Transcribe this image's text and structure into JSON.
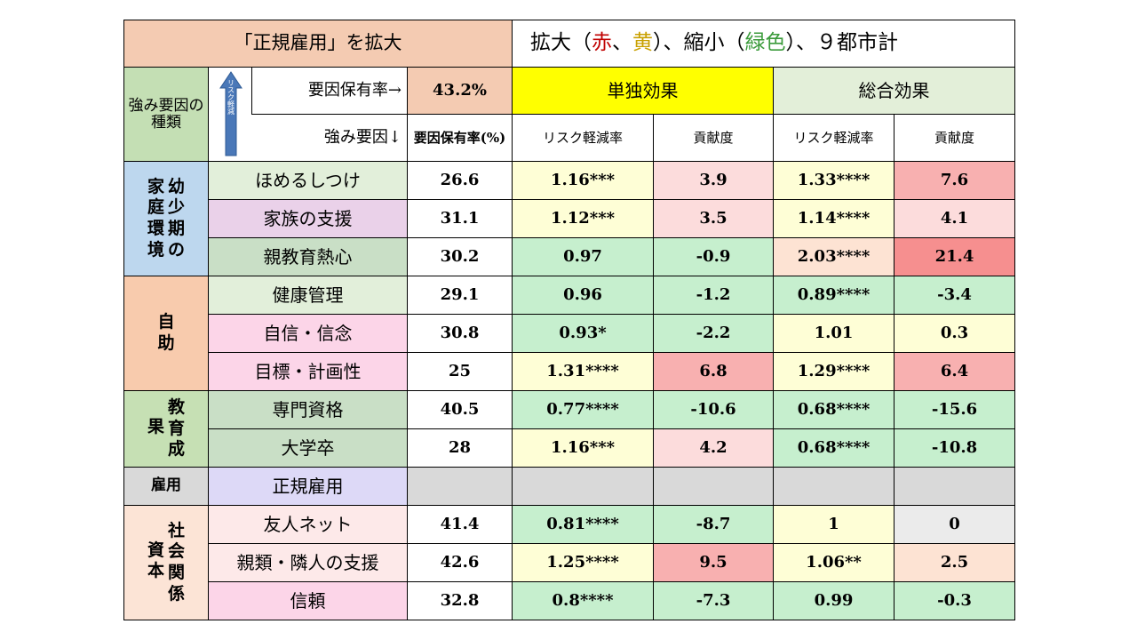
{
  "title_left": "「正規雇用」を拡大",
  "title_right": {
    "p1": "拡大（",
    "red": "赤",
    "sep1": "、",
    "yellow": "黄",
    "p2": "）、縮小（",
    "green": "緑色",
    "p3": "）、９都市計"
  },
  "header": {
    "kind": "強み要因の種類",
    "arrow_text": "リスク軽減",
    "factor_rate_label": "要因保有率→",
    "factor_rate_value": "43.2%",
    "single_effect": "単独効果",
    "total_effect": "総合効果",
    "strength_factor": "強み要因↓",
    "rate_col": "要因保有率(%)",
    "risk_reduction": "リスク軽減率",
    "contribution": "貢献度"
  },
  "categories": [
    {
      "label": "幼少期の家庭環境",
      "cols": [
        "家庭環境",
        "幼少期の"
      ]
    },
    {
      "label": "自助"
    },
    {
      "label": "教育成果"
    },
    {
      "label": "雇用"
    },
    {
      "label": "社会関係資本"
    }
  ],
  "rows": [
    {
      "factor": "ほめるしつけ",
      "rate": "26.6",
      "s_risk": "1.16***",
      "s_contrib": "3.9",
      "t_risk": "1.33****",
      "t_contrib": "7.6"
    },
    {
      "factor": "家族の支援",
      "rate": "31.1",
      "s_risk": "1.12***",
      "s_contrib": "3.5",
      "t_risk": "1.14****",
      "t_contrib": "4.1"
    },
    {
      "factor": "親教育熱心",
      "rate": "30.2",
      "s_risk": "0.97",
      "s_contrib": "-0.9",
      "t_risk": "2.03****",
      "t_contrib": "21.4"
    },
    {
      "factor": "健康管理",
      "rate": "29.1",
      "s_risk": "0.96",
      "s_contrib": "-1.2",
      "t_risk": "0.89****",
      "t_contrib": "-3.4"
    },
    {
      "factor": "自信・信念",
      "rate": "30.8",
      "s_risk": "0.93*",
      "s_contrib": "-2.2",
      "t_risk": "1.01",
      "t_contrib": "0.3"
    },
    {
      "factor": "目標・計画性",
      "rate": "25",
      "s_risk": "1.31****",
      "s_contrib": "6.8",
      "t_risk": "1.29****",
      "t_contrib": "6.4"
    },
    {
      "factor": "専門資格",
      "rate": "40.5",
      "s_risk": "0.77****",
      "s_contrib": "-10.6",
      "t_risk": "0.68****",
      "t_contrib": "-15.6"
    },
    {
      "factor": "大学卒",
      "rate": "28",
      "s_risk": "1.16***",
      "s_contrib": "4.2",
      "t_risk": "0.68****",
      "t_contrib": "-10.8"
    },
    {
      "factor": "正規雇用",
      "rate": "",
      "s_risk": "",
      "s_contrib": "",
      "t_risk": "",
      "t_contrib": ""
    },
    {
      "factor": "友人ネット",
      "rate": "41.4",
      "s_risk": "0.81****",
      "s_contrib": "-8.7",
      "t_risk": "1",
      "t_contrib": "0"
    },
    {
      "factor": "親類・隣人の支援",
      "rate": "42.6",
      "s_risk": "1.25****",
      "s_contrib": "9.5",
      "t_risk": "1.06**",
      "t_contrib": "2.5"
    },
    {
      "factor": "信頼",
      "rate": "32.8",
      "s_risk": "0.8****",
      "s_contrib": "-7.3",
      "t_risk": "0.99",
      "t_contrib": "-0.3"
    }
  ]
}
